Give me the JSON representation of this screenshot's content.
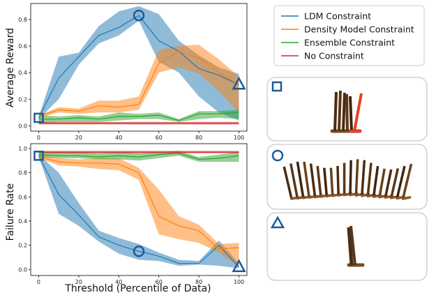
{
  "chart_data": {
    "type": "line",
    "legend": {
      "placement": "top-right",
      "entries": [
        {
          "name": "LDM Constraint",
          "color": "#1f77b4"
        },
        {
          "name": "Density Model Constraint",
          "color": "#ff7f0e"
        },
        {
          "name": "Ensemble Constraint",
          "color": "#2ca02c"
        },
        {
          "name": "No Constraint",
          "color": "#d62728"
        }
      ]
    },
    "xlabel": "Threshold (Percentile of Data)",
    "grid": false,
    "panels": [
      {
        "id": "reward",
        "ylabel": "Average Reward",
        "xlim": [
          -4,
          104
        ],
        "ylim": [
          -0.04,
          0.92
        ],
        "xticks": [
          "0",
          "20",
          "40",
          "60",
          "80",
          "100"
        ],
        "xtick_values": [
          0,
          20,
          40,
          60,
          80,
          100
        ],
        "yticks": [
          "0.0",
          "0.2",
          "0.4",
          "0.6",
          "0.8"
        ],
        "ytick_values": [
          0,
          0.2,
          0.4,
          0.6,
          0.8
        ],
        "x": [
          0,
          10,
          20,
          30,
          40,
          50,
          60,
          70,
          80,
          90,
          100
        ],
        "series": [
          {
            "name": "LDM Constraint",
            "color": "#1f77b4",
            "mean": [
              0.06,
              0.36,
              0.52,
              0.68,
              0.74,
              0.83,
              0.64,
              0.56,
              0.43,
              0.38,
              0.31
            ],
            "lower": [
              0.05,
              0.2,
              0.46,
              0.62,
              0.68,
              0.79,
              0.48,
              0.4,
              0.22,
              0.1,
              0.04
            ],
            "upper": [
              0.07,
              0.52,
              0.55,
              0.75,
              0.86,
              0.9,
              0.84,
              0.64,
              0.53,
              0.44,
              0.39
            ]
          },
          {
            "name": "Density Model Constraint",
            "color": "#ff7f0e",
            "mean": [
              0.07,
              0.12,
              0.11,
              0.15,
              0.14,
              0.16,
              0.47,
              0.56,
              0.51,
              0.4,
              0.31
            ],
            "lower": [
              0.06,
              0.1,
              0.09,
              0.1,
              0.1,
              0.12,
              0.4,
              0.44,
              0.39,
              0.26,
              0.1
            ],
            "upper": [
              0.08,
              0.14,
              0.13,
              0.19,
              0.19,
              0.22,
              0.57,
              0.6,
              0.61,
              0.5,
              0.37
            ]
          },
          {
            "name": "Ensemble Constraint",
            "color": "#2ca02c",
            "mean": [
              0.05,
              0.05,
              0.06,
              0.05,
              0.07,
              0.07,
              0.08,
              0.04,
              0.09,
              0.09,
              0.1
            ],
            "lower": [
              0.02,
              0.03,
              0.03,
              0.03,
              0.04,
              0.05,
              0.05,
              0.03,
              0.05,
              0.06,
              0.05
            ],
            "upper": [
              0.08,
              0.07,
              0.08,
              0.07,
              0.1,
              0.09,
              0.1,
              0.05,
              0.11,
              0.11,
              0.12
            ]
          },
          {
            "name": "No Constraint",
            "color": "#d62728",
            "mean": [
              0.02,
              0.02,
              0.02,
              0.02,
              0.02,
              0.02,
              0.02,
              0.02,
              0.02,
              0.02,
              0.02
            ],
            "lower": [
              0.01,
              0.01,
              0.01,
              0.01,
              0.01,
              0.01,
              0.01,
              0.01,
              0.01,
              0.01,
              0.01
            ],
            "upper": [
              0.03,
              0.03,
              0.03,
              0.03,
              0.03,
              0.03,
              0.03,
              0.03,
              0.03,
              0.03,
              0.03
            ]
          }
        ],
        "markers": [
          {
            "shape": "square",
            "x": 0,
            "y": 0.06
          },
          {
            "shape": "circle",
            "x": 50,
            "y": 0.83
          },
          {
            "shape": "triangle",
            "x": 100,
            "y": 0.31
          }
        ]
      },
      {
        "id": "failure",
        "ylabel": "Failure Rate",
        "xlim": [
          -4,
          104
        ],
        "ylim": [
          -0.05,
          1.04
        ],
        "xticks": [
          "0",
          "20",
          "40",
          "60",
          "80",
          "100"
        ],
        "xtick_values": [
          0,
          20,
          40,
          60,
          80,
          100
        ],
        "yticks": [
          "0.0",
          "0.2",
          "0.4",
          "0.6",
          "0.8",
          "1.0"
        ],
        "ytick_values": [
          0,
          0.2,
          0.4,
          0.6,
          0.8,
          1.0
        ],
        "x": [
          0,
          10,
          20,
          30,
          40,
          50,
          60,
          70,
          80,
          90,
          100
        ],
        "series": [
          {
            "name": "LDM Constraint",
            "color": "#1f77b4",
            "mean": [
              0.94,
              0.62,
              0.45,
              0.27,
              0.2,
              0.15,
              0.11,
              0.05,
              0.05,
              0.2,
              0.02
            ],
            "lower": [
              0.93,
              0.46,
              0.36,
              0.23,
              0.13,
              0.08,
              0.07,
              0.03,
              0.04,
              0.03,
              0.01
            ],
            "upper": [
              0.95,
              0.8,
              0.55,
              0.32,
              0.26,
              0.21,
              0.14,
              0.08,
              0.07,
              0.24,
              0.05
            ]
          },
          {
            "name": "Density Model Constraint",
            "color": "#ff7f0e",
            "mean": [
              0.93,
              0.89,
              0.88,
              0.88,
              0.87,
              0.8,
              0.44,
              0.36,
              0.32,
              0.17,
              0.18
            ],
            "lower": [
              0.92,
              0.86,
              0.85,
              0.83,
              0.82,
              0.74,
              0.29,
              0.25,
              0.22,
              0.14,
              0.02
            ],
            "upper": [
              0.95,
              0.92,
              0.91,
              0.92,
              0.92,
              0.84,
              0.66,
              0.44,
              0.37,
              0.21,
              0.22
            ]
          },
          {
            "name": "Ensemble Constraint",
            "color": "#2ca02c",
            "mean": [
              0.95,
              0.94,
              0.94,
              0.93,
              0.94,
              0.93,
              0.95,
              0.96,
              0.91,
              0.92,
              0.94
            ],
            "lower": [
              0.93,
              0.92,
              0.92,
              0.91,
              0.91,
              0.9,
              0.92,
              0.94,
              0.89,
              0.89,
              0.89
            ],
            "upper": [
              0.97,
              0.97,
              0.97,
              0.96,
              0.97,
              0.96,
              0.97,
              0.98,
              0.93,
              0.95,
              0.97
            ]
          },
          {
            "name": "No Constraint",
            "color": "#d62728",
            "mean": [
              0.97,
              0.97,
              0.97,
              0.97,
              0.97,
              0.97,
              0.97,
              0.97,
              0.97,
              0.97,
              0.97
            ],
            "lower": [
              0.96,
              0.96,
              0.96,
              0.96,
              0.96,
              0.96,
              0.96,
              0.96,
              0.96,
              0.96,
              0.96
            ],
            "upper": [
              0.98,
              0.98,
              0.98,
              0.98,
              0.98,
              0.98,
              0.98,
              0.98,
              0.98,
              0.98,
              0.98
            ]
          }
        ],
        "markers": [
          {
            "shape": "square",
            "x": 0,
            "y": 0.94
          },
          {
            "shape": "circle",
            "x": 50,
            "y": 0.15
          },
          {
            "shape": "triangle",
            "x": 100,
            "y": 0.02
          }
        ]
      }
    ],
    "snapshots": [
      {
        "marker": "square",
        "description": "robot-legs-frames"
      },
      {
        "marker": "circle",
        "description": "robot-legs-frames"
      },
      {
        "marker": "triangle",
        "description": "robot-legs-frames"
      }
    ],
    "marker_color": "#1a5a9a"
  }
}
